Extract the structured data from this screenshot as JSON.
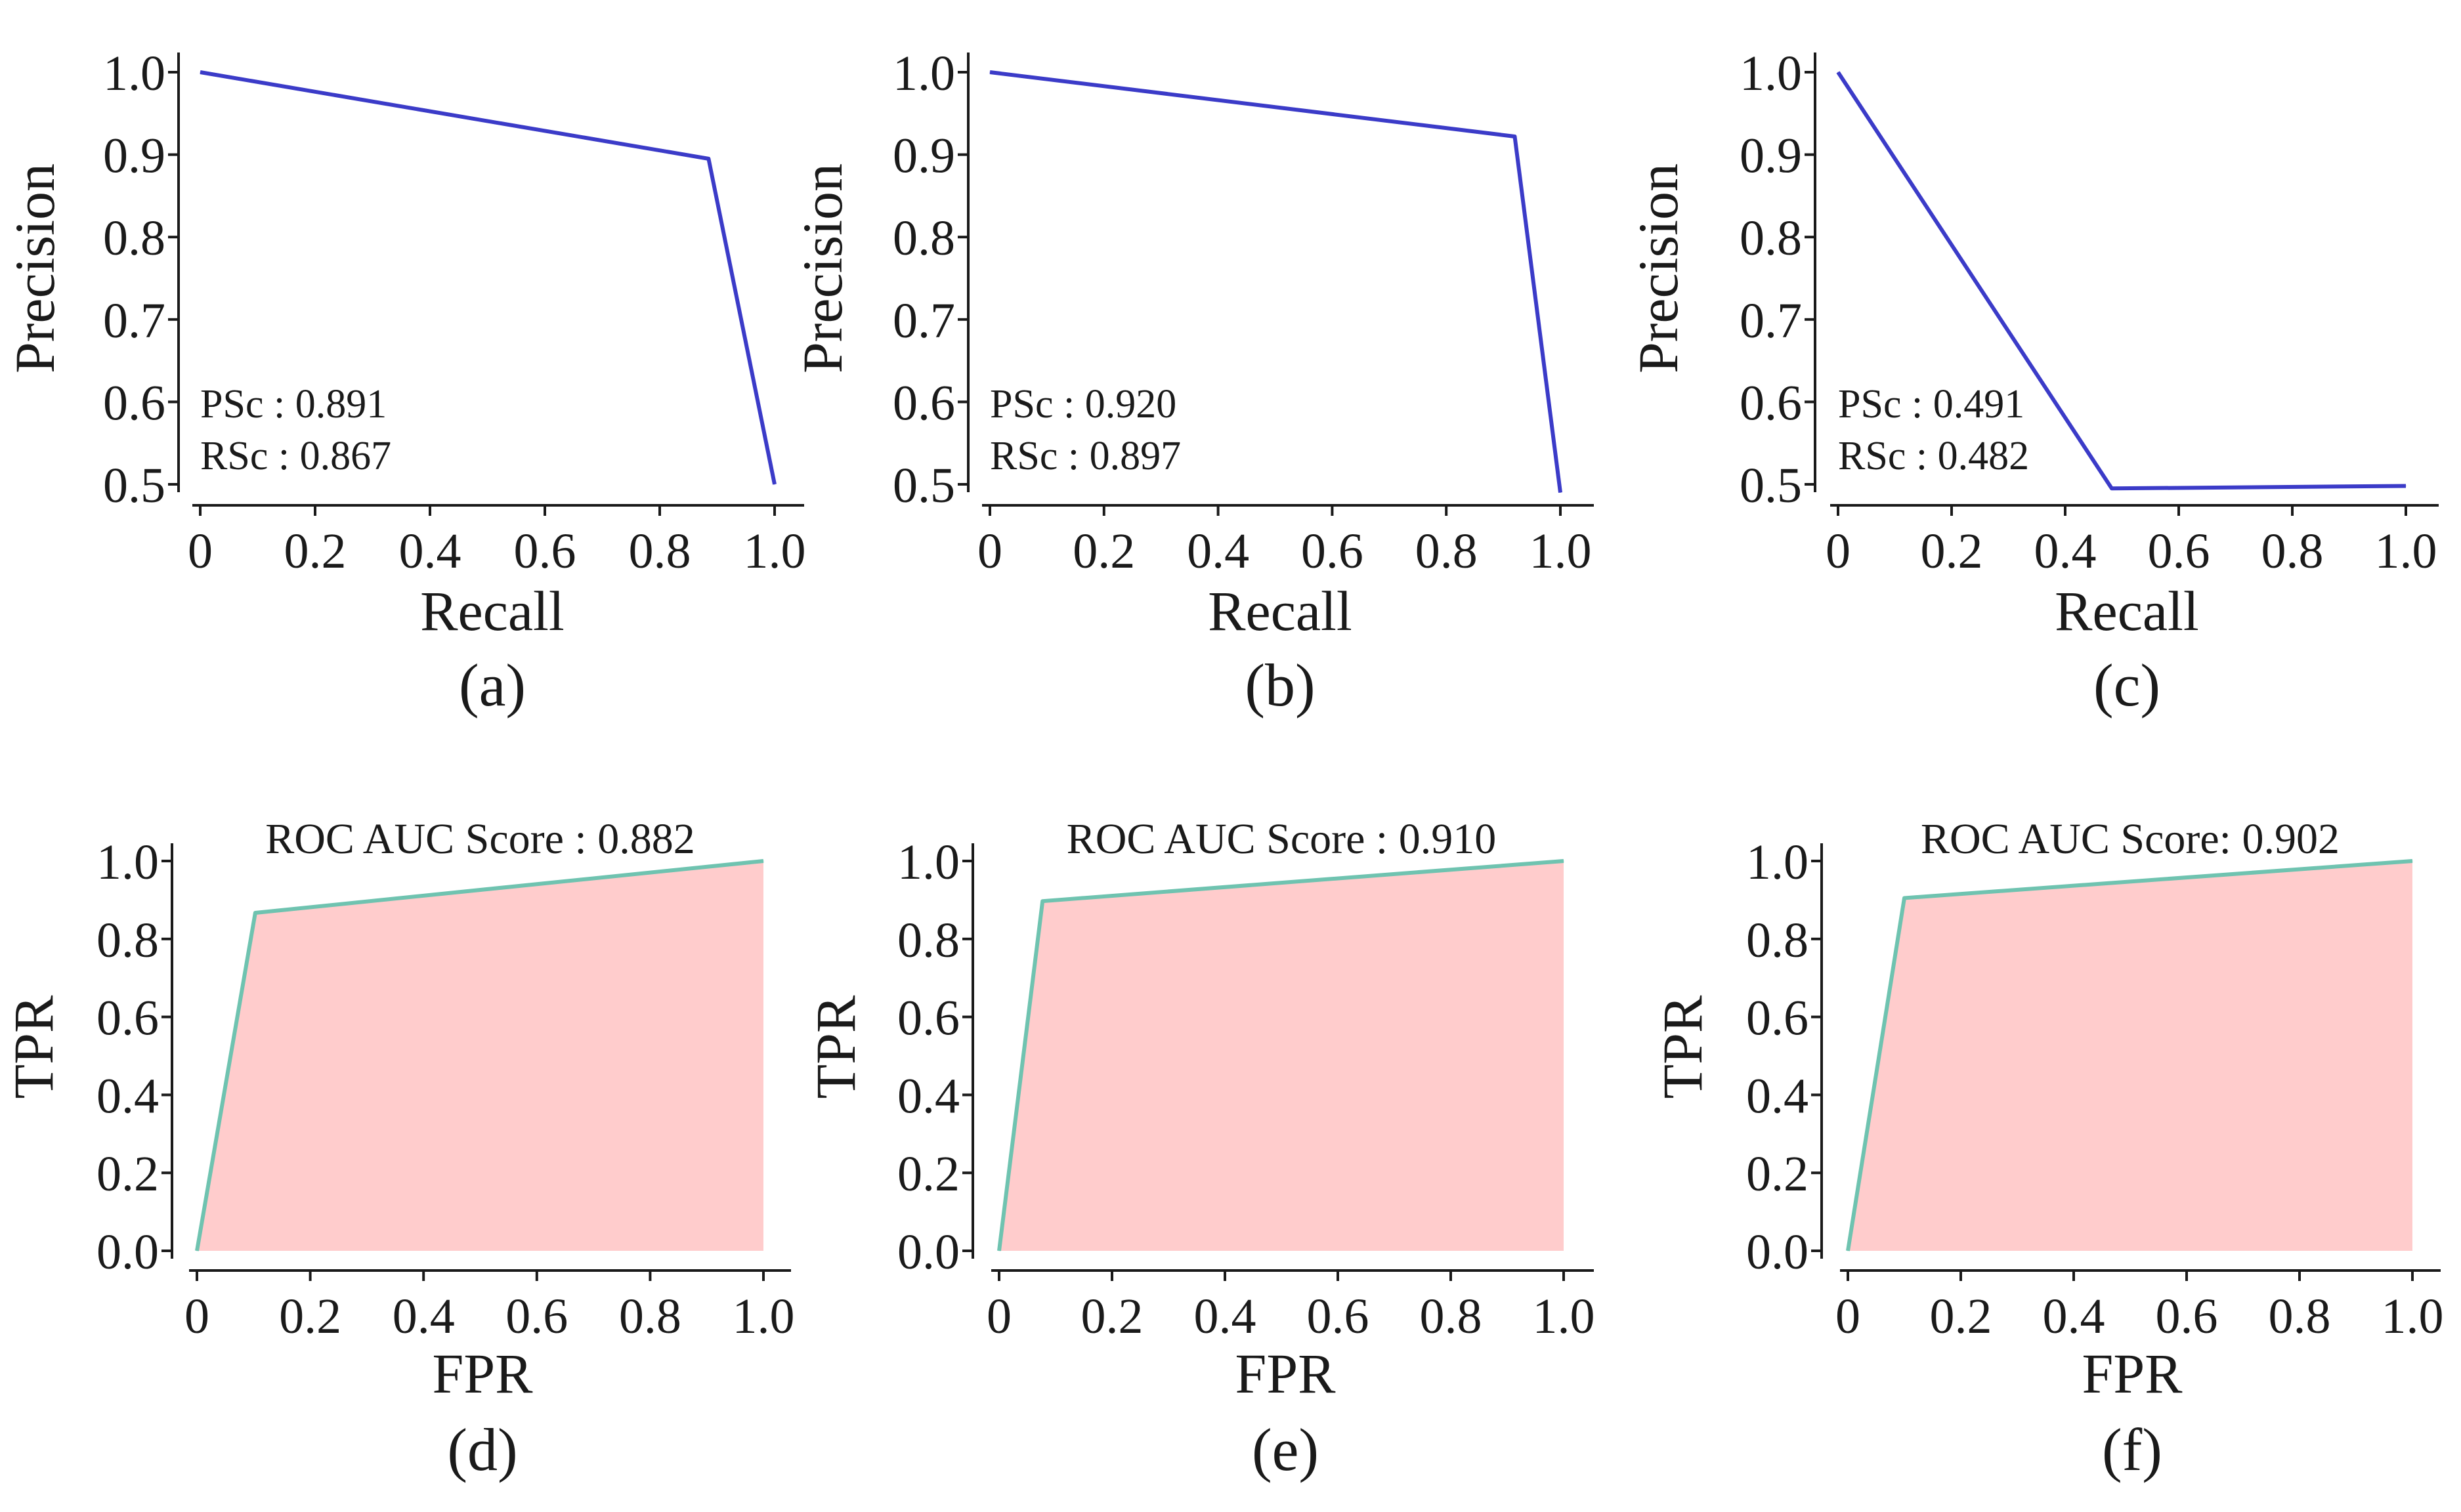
{
  "chart_data": [
    {
      "id": "a",
      "type": "line",
      "panel_label": "(a)",
      "title": "",
      "xlabel": "Recall",
      "ylabel": "Precision",
      "xlim": [
        0,
        1.0
      ],
      "ylim": [
        0.5,
        1.0
      ],
      "xticks": [
        0,
        0.2,
        0.4,
        0.6,
        0.8,
        1.0
      ],
      "xtick_labels": [
        "0",
        "0.2",
        "0.4",
        "0.6",
        "0.8",
        "1.0"
      ],
      "yticks": [
        0.5,
        0.6,
        0.7,
        0.8,
        0.9,
        1.0
      ],
      "ytick_labels": [
        "0.5",
        "0.6",
        "0.7",
        "0.8",
        "0.9",
        "1.0"
      ],
      "series": [
        {
          "name": "Precision-Recall",
          "color": "#3b3bc8",
          "x": [
            0,
            0.885,
            1.0
          ],
          "y": [
            1.0,
            0.895,
            0.5
          ]
        }
      ],
      "annotations": [
        "PSc : 0.891",
        "RSc : 0.867"
      ]
    },
    {
      "id": "b",
      "type": "line",
      "panel_label": "(b)",
      "title": "",
      "xlabel": "Recall",
      "ylabel": "Precision",
      "xlim": [
        0,
        1.0
      ],
      "ylim": [
        0.5,
        1.0
      ],
      "xticks": [
        0,
        0.2,
        0.4,
        0.6,
        0.8,
        1.0
      ],
      "xtick_labels": [
        "0",
        "0.2",
        "0.4",
        "0.6",
        "0.8",
        "1.0"
      ],
      "yticks": [
        0.5,
        0.6,
        0.7,
        0.8,
        0.9,
        1.0
      ],
      "ytick_labels": [
        "0.5",
        "0.6",
        "0.7",
        "0.8",
        "0.9",
        "1.0"
      ],
      "series": [
        {
          "name": "Precision-Recall",
          "color": "#3b3bc8",
          "x": [
            0,
            0.92,
            1.0
          ],
          "y": [
            1.0,
            0.922,
            0.49
          ]
        }
      ],
      "annotations": [
        "PSc : 0.920",
        "RSc : 0.897"
      ]
    },
    {
      "id": "c",
      "type": "line",
      "panel_label": "(c)",
      "title": "",
      "xlabel": "Recall",
      "ylabel": "Precision",
      "xlim": [
        0,
        1.0
      ],
      "ylim": [
        0.5,
        1.0
      ],
      "xticks": [
        0,
        0.2,
        0.4,
        0.6,
        0.8,
        1.0
      ],
      "xtick_labels": [
        "0",
        "0.2",
        "0.4",
        "0.6",
        "0.8",
        "1.0"
      ],
      "yticks": [
        0.5,
        0.6,
        0.7,
        0.8,
        0.9,
        1.0
      ],
      "ytick_labels": [
        "0.5",
        "0.6",
        "0.7",
        "0.8",
        "0.9",
        "1.0"
      ],
      "series": [
        {
          "name": "Precision-Recall",
          "color": "#3b3bc8",
          "x": [
            0,
            0.482,
            1.0
          ],
          "y": [
            1.0,
            0.495,
            0.498
          ]
        }
      ],
      "annotations": [
        "PSc : 0.491",
        "RSc : 0.482"
      ]
    },
    {
      "id": "d",
      "type": "area",
      "panel_label": "(d)",
      "title": "ROC AUC Score : 0.882",
      "xlabel": "FPR",
      "ylabel": "TPR",
      "xlim": [
        0,
        1.0
      ],
      "ylim": [
        0.0,
        1.0
      ],
      "xticks": [
        0,
        0.2,
        0.4,
        0.6,
        0.8,
        1.0
      ],
      "xtick_labels": [
        "0",
        "0.2",
        "0.4",
        "0.6",
        "0.8",
        "1.0"
      ],
      "yticks": [
        0.0,
        0.2,
        0.4,
        0.6,
        0.8,
        1.0
      ],
      "ytick_labels": [
        "0.0",
        "0.2",
        "0.4",
        "0.6",
        "0.8",
        "1.0"
      ],
      "series": [
        {
          "name": "ROC",
          "color": "#6fc3b0",
          "fill": "#ffcccc",
          "x": [
            0,
            0.103,
            1.0
          ],
          "y": [
            0,
            0.867,
            1.0
          ]
        }
      ],
      "annotations": []
    },
    {
      "id": "e",
      "type": "area",
      "panel_label": "(e)",
      "title": "ROC AUC Score : 0.910",
      "xlabel": "FPR",
      "ylabel": "TPR",
      "xlim": [
        0,
        1.0
      ],
      "ylim": [
        0.0,
        1.0
      ],
      "xticks": [
        0,
        0.2,
        0.4,
        0.6,
        0.8,
        1.0
      ],
      "xtick_labels": [
        "0",
        "0.2",
        "0.4",
        "0.6",
        "0.8",
        "1.0"
      ],
      "yticks": [
        0.0,
        0.2,
        0.4,
        0.6,
        0.8,
        1.0
      ],
      "ytick_labels": [
        "0.0",
        "0.2",
        "0.4",
        "0.6",
        "0.8",
        "1.0"
      ],
      "series": [
        {
          "name": "ROC",
          "color": "#6fc3b0",
          "fill": "#ffcccc",
          "x": [
            0,
            0.077,
            1.0
          ],
          "y": [
            0,
            0.897,
            1.0
          ]
        }
      ],
      "annotations": []
    },
    {
      "id": "f",
      "type": "area",
      "panel_label": "(f)",
      "title": "ROC AUC Score: 0.902",
      "xlabel": "FPR",
      "ylabel": "TPR",
      "xlim": [
        0,
        1.0
      ],
      "ylim": [
        0.0,
        1.0
      ],
      "xticks": [
        0,
        0.2,
        0.4,
        0.6,
        0.8,
        1.0
      ],
      "xtick_labels": [
        "0",
        "0.2",
        "0.4",
        "0.6",
        "0.8",
        "1.0"
      ],
      "yticks": [
        0.0,
        0.2,
        0.4,
        0.6,
        0.8,
        1.0
      ],
      "ytick_labels": [
        "0.0",
        "0.2",
        "0.4",
        "0.6",
        "0.8",
        "1.0"
      ],
      "series": [
        {
          "name": "ROC",
          "color": "#6fc3b0",
          "fill": "#ffcccc",
          "x": [
            0,
            0.1,
            1.0
          ],
          "y": [
            0,
            0.905,
            1.0
          ]
        }
      ],
      "annotations": []
    }
  ]
}
